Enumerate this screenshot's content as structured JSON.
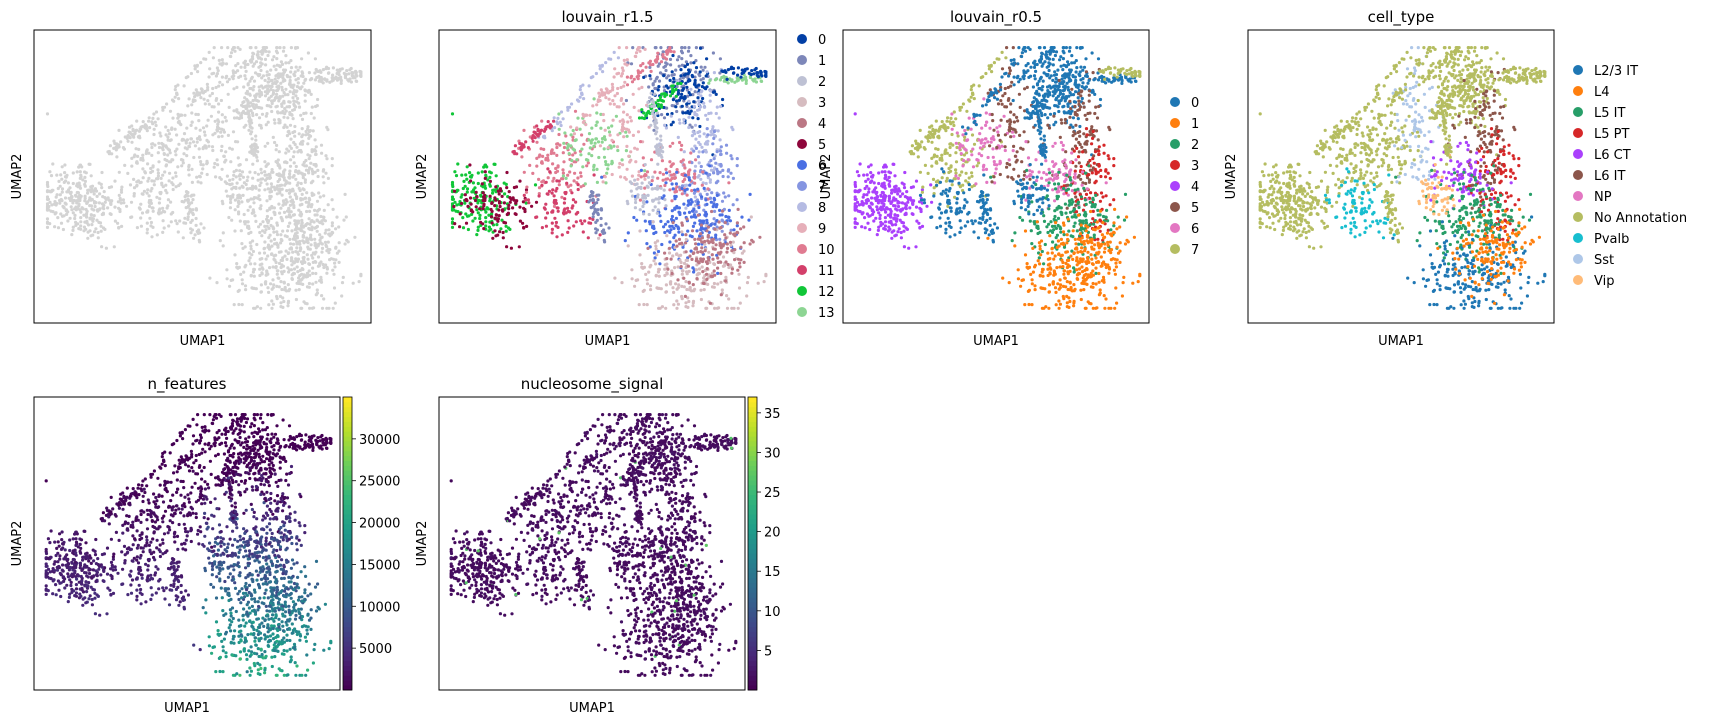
{
  "chart_data": [
    {
      "type": "scatter",
      "title": "",
      "xlabel": "UMAP1",
      "ylabel": "UMAP2",
      "color": "#d3d3d3",
      "legend": []
    },
    {
      "type": "scatter",
      "title": "louvain_r1.5",
      "xlabel": "UMAP1",
      "ylabel": "UMAP2",
      "legend_placement": "right",
      "legend": [
        {
          "label": "0",
          "color": "#023fa5"
        },
        {
          "label": "1",
          "color": "#7d87b9"
        },
        {
          "label": "2",
          "color": "#bec1d4"
        },
        {
          "label": "3",
          "color": "#d6bcc0"
        },
        {
          "label": "4",
          "color": "#bb7784"
        },
        {
          "label": "5",
          "color": "#8e063b"
        },
        {
          "label": "6",
          "color": "#4a6fe3"
        },
        {
          "label": "7",
          "color": "#8595e1"
        },
        {
          "label": "8",
          "color": "#b5bbe3"
        },
        {
          "label": "9",
          "color": "#e6afb9"
        },
        {
          "label": "10",
          "color": "#e07b91"
        },
        {
          "label": "11",
          "color": "#d33f6a"
        },
        {
          "label": "12",
          "color": "#11c638"
        },
        {
          "label": "13",
          "color": "#8dd593"
        }
      ]
    },
    {
      "type": "scatter",
      "title": "louvain_r0.5",
      "xlabel": "UMAP1",
      "ylabel": "UMAP2",
      "legend_placement": "right",
      "legend": [
        {
          "label": "0",
          "color": "#1f77b4"
        },
        {
          "label": "1",
          "color": "#ff7f0e"
        },
        {
          "label": "2",
          "color": "#279e68"
        },
        {
          "label": "3",
          "color": "#d62728"
        },
        {
          "label": "4",
          "color": "#aa40fc"
        },
        {
          "label": "5",
          "color": "#8c564b"
        },
        {
          "label": "6",
          "color": "#e377c2"
        },
        {
          "label": "7",
          "color": "#b5bd61"
        }
      ]
    },
    {
      "type": "scatter",
      "title": "cell_type",
      "xlabel": "UMAP1",
      "ylabel": "UMAP2",
      "legend_placement": "right",
      "legend": [
        {
          "label": "L2/3 IT",
          "color": "#1f77b4"
        },
        {
          "label": "L4",
          "color": "#ff7f0e"
        },
        {
          "label": "L5 IT",
          "color": "#279e68"
        },
        {
          "label": "L5 PT",
          "color": "#d62728"
        },
        {
          "label": "L6 CT",
          "color": "#aa40fc"
        },
        {
          "label": "L6 IT",
          "color": "#8c564b"
        },
        {
          "label": "NP",
          "color": "#e377c2"
        },
        {
          "label": "No Annotation",
          "color": "#b5bd61"
        },
        {
          "label": "Pvalb",
          "color": "#17becf"
        },
        {
          "label": "Sst",
          "color": "#aec7e8"
        },
        {
          "label": "Vip",
          "color": "#ffbb78"
        }
      ]
    },
    {
      "type": "scatter",
      "title": "n_features",
      "xlabel": "UMAP1",
      "ylabel": "UMAP2",
      "colorbar": {
        "colormap": "viridis",
        "min": 0,
        "max": 35000,
        "ticks": [
          "5000",
          "10000",
          "15000",
          "20000",
          "25000",
          "30000"
        ]
      }
    },
    {
      "type": "scatter",
      "title": "nucleosome_signal",
      "xlabel": "UMAP1",
      "ylabel": "UMAP2",
      "colorbar": {
        "colormap": "viridis",
        "min": 0,
        "max": 37,
        "ticks": [
          "5",
          "10",
          "15",
          "20",
          "25",
          "30",
          "35"
        ]
      }
    }
  ]
}
